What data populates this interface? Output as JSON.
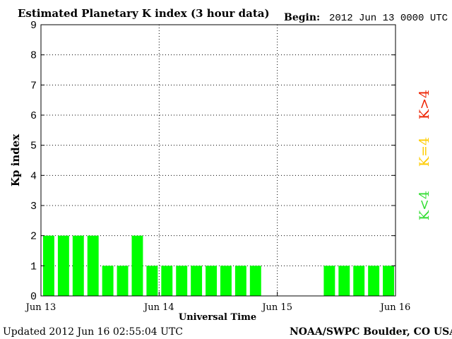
{
  "chart_data": {
    "type": "bar",
    "title": "Estimated Planetary K index (3 hour data)",
    "begin_label": "Begin:",
    "begin_value": "2012 Jun 13 0000 UTC",
    "xlabel": "Universal Time",
    "ylabel": "Kp index",
    "ylim": [
      0,
      9
    ],
    "yticks": [
      "0",
      "1",
      "2",
      "3",
      "4",
      "5",
      "6",
      "7",
      "8",
      "9"
    ],
    "xticks": [
      "Jun 13",
      "Jun 14",
      "Jun 15",
      "Jun 16"
    ],
    "grid": true,
    "slots_per_day": 8,
    "values": [
      2,
      2,
      2,
      2,
      1,
      1,
      2,
      1,
      1,
      1,
      1,
      1,
      1,
      1,
      1,
      null,
      null,
      null,
      null,
      1,
      1,
      1,
      1,
      1
    ],
    "bar_color": "#00ff00",
    "legend": [
      {
        "label": "K<4",
        "color": "#33dd33"
      },
      {
        "label": "K=4",
        "color": "#ffcc00"
      },
      {
        "label": "K>4",
        "color": "#ee2200"
      }
    ],
    "updated": "Updated 2012 Jun 16 02:55:04 UTC",
    "source": "NOAA/SWPC Boulder, CO USA"
  }
}
